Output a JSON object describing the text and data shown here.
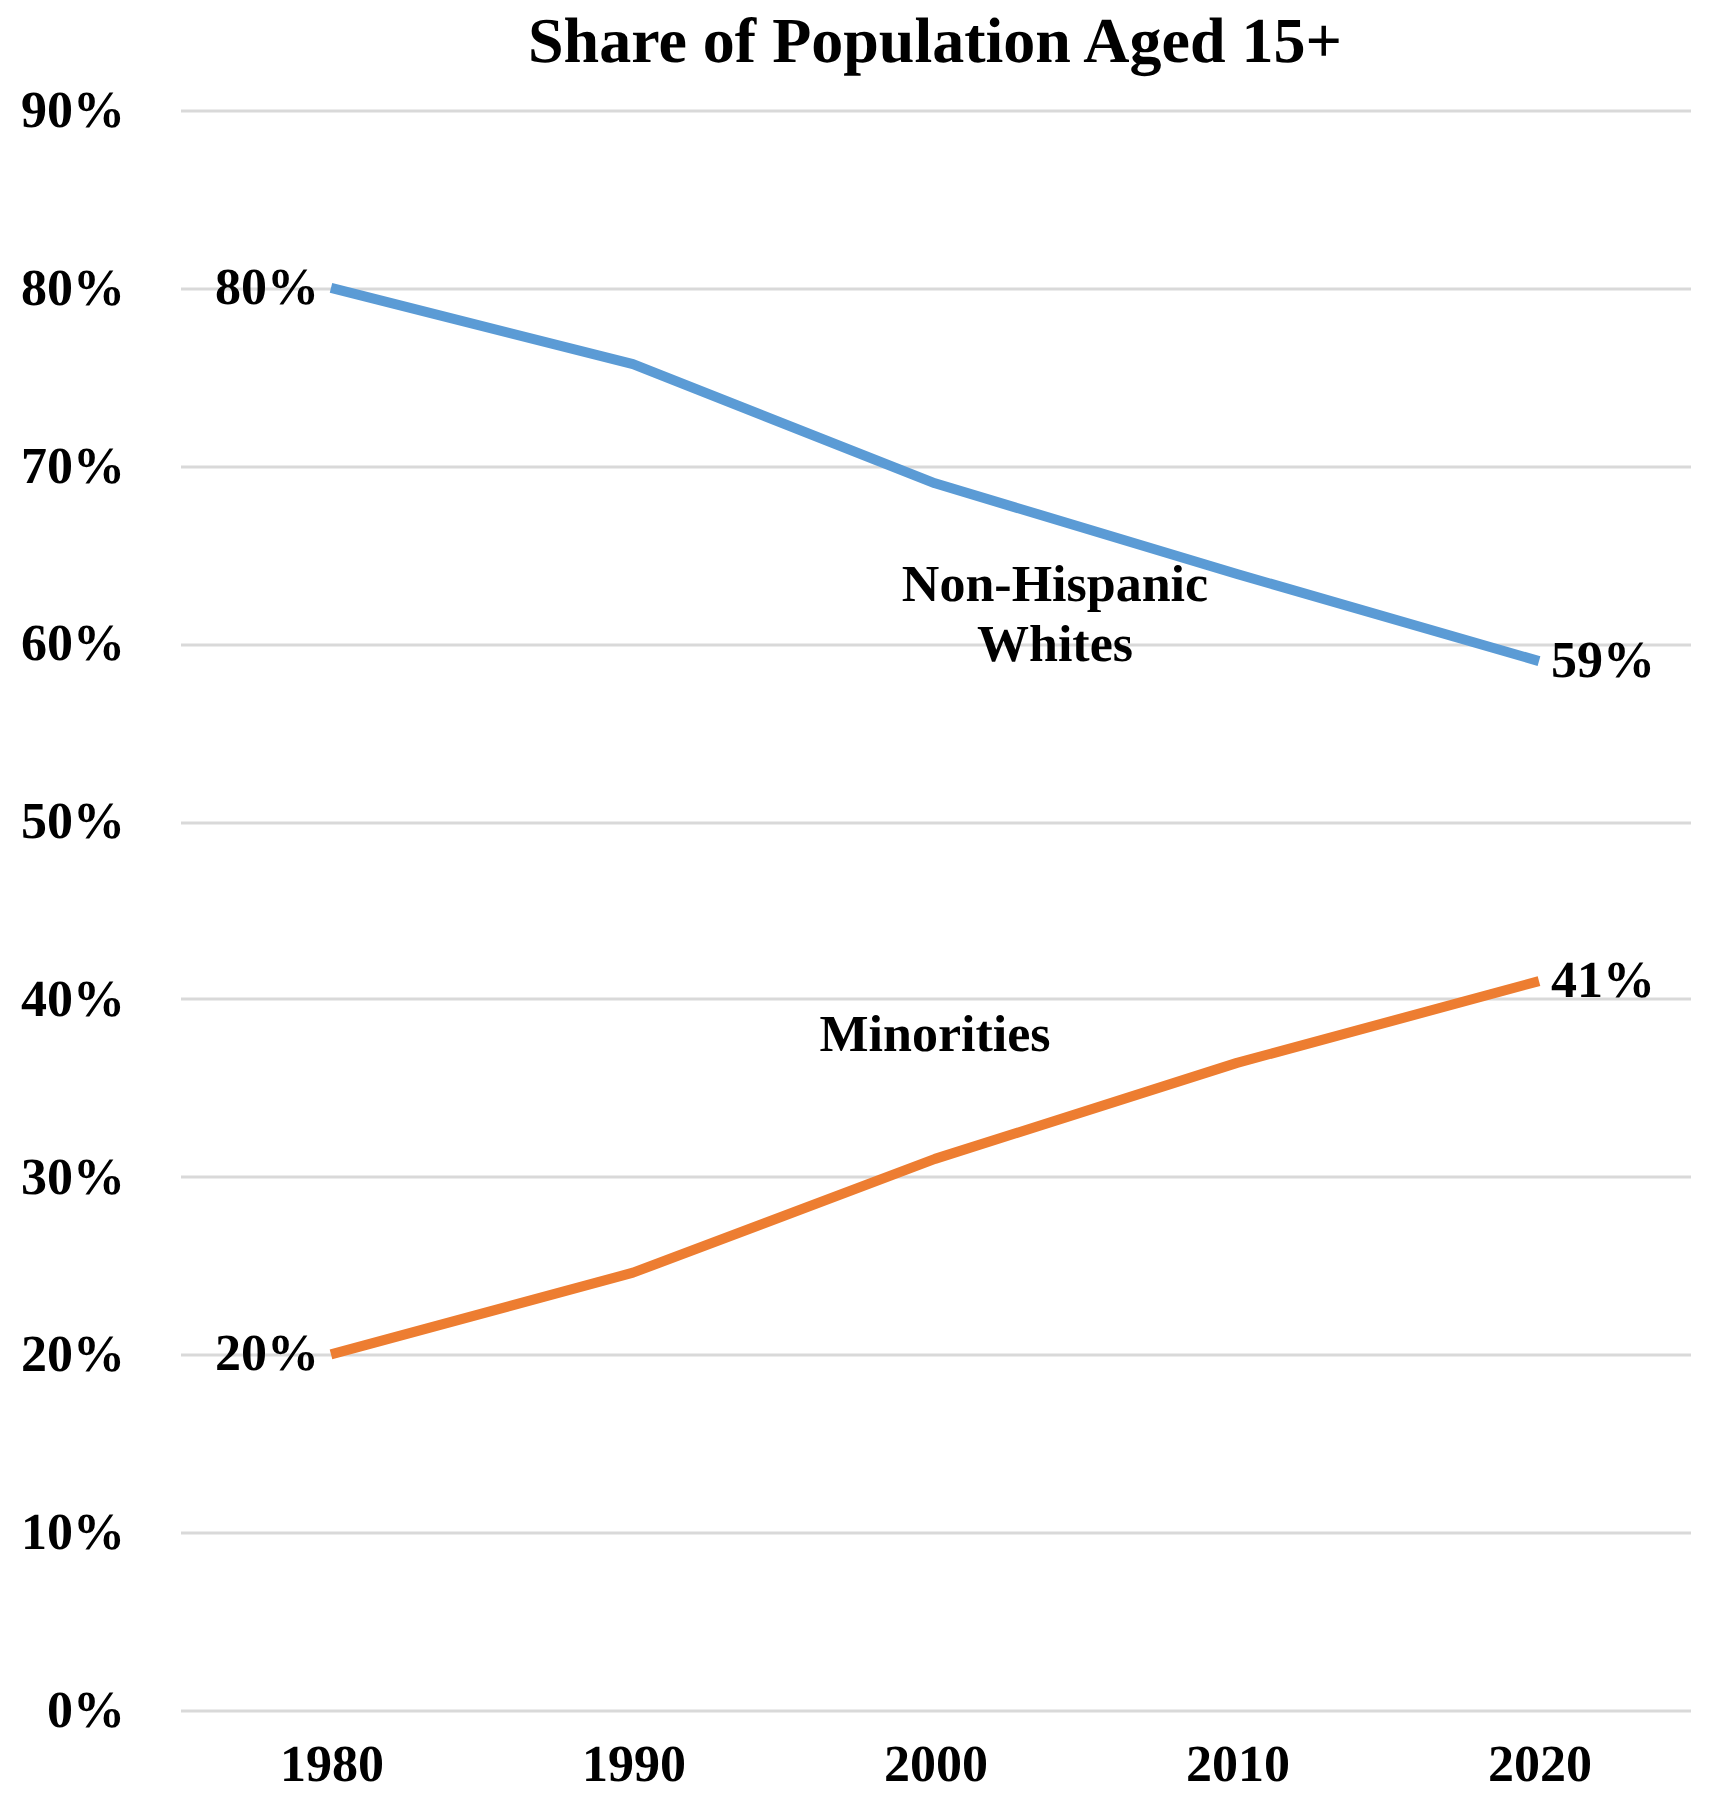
{
  "chart_data": {
    "type": "line",
    "title": "Share of Population Aged 15+",
    "categories": [
      "1980",
      "1990",
      "2000",
      "2010",
      "2020"
    ],
    "series": [
      {
        "name": "Non-Hispanic Whites",
        "color": "#5b9bd5",
        "values": [
          80,
          75.7,
          69,
          63.9,
          59
        ],
        "value_labels": [
          "80%",
          null,
          null,
          null,
          "59%"
        ]
      },
      {
        "name": "Minorities",
        "color": "#ed7d31",
        "values": [
          20,
          24.6,
          31,
          36.4,
          41
        ],
        "value_labels": [
          "20%",
          null,
          null,
          null,
          "41%"
        ]
      }
    ],
    "ylim": [
      0,
      90
    ],
    "yticks": [
      {
        "value": 0,
        "label": "0%"
      },
      {
        "value": 10,
        "label": "10%"
      },
      {
        "value": 20,
        "label": "20%"
      },
      {
        "value": 30,
        "label": "30%"
      },
      {
        "value": 40,
        "label": "40%"
      },
      {
        "value": 50,
        "label": "50%"
      },
      {
        "value": 60,
        "label": "60%"
      },
      {
        "value": 70,
        "label": "70%"
      },
      {
        "value": 80,
        "label": "80%"
      },
      {
        "value": 90,
        "label": "90%"
      }
    ],
    "grid": "y",
    "legend": false,
    "marker": "none",
    "line_style": "solid"
  }
}
